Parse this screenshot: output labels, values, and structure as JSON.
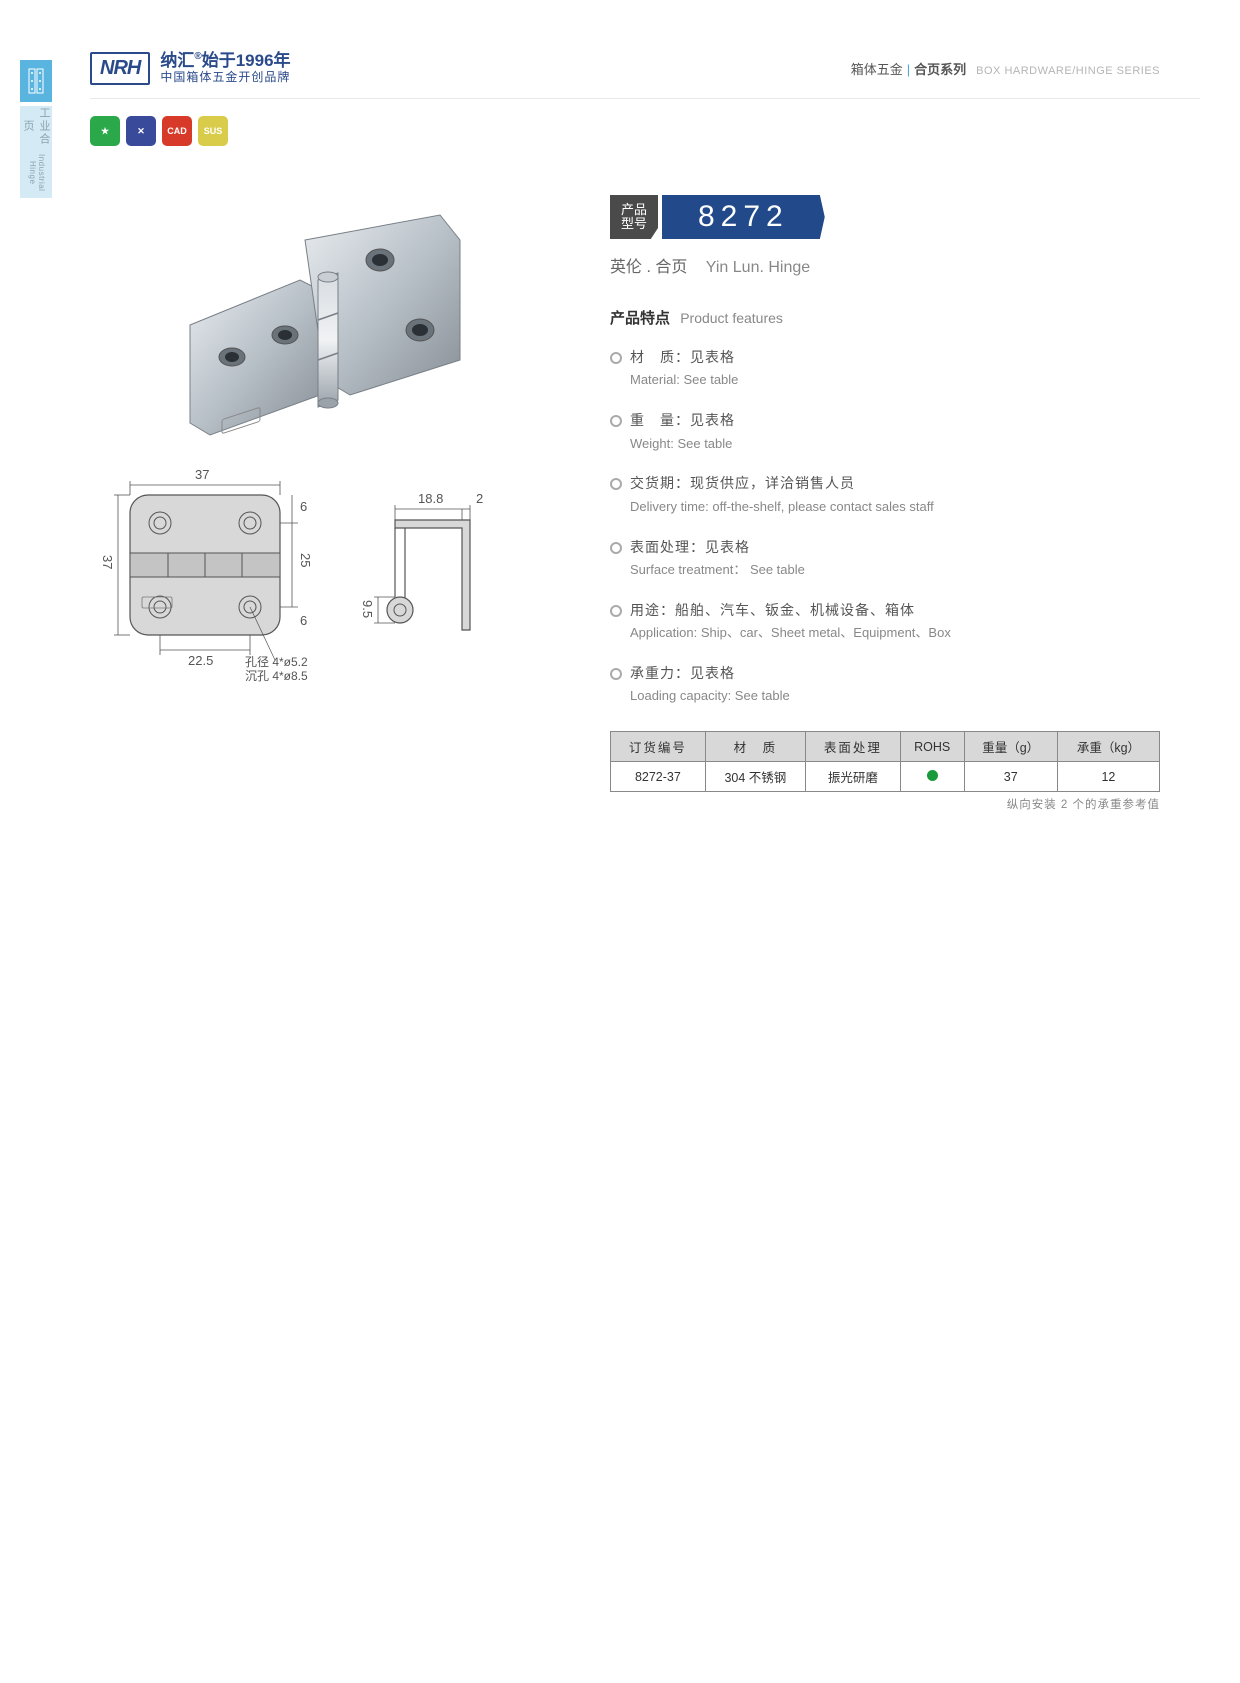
{
  "header": {
    "logo_brand": "NRH",
    "logo_cn": "纳汇",
    "logo_reg": "®",
    "logo_year": "始于1996年",
    "logo_sub": "中国箱体五金开创品牌",
    "right_cn1": "箱体五金",
    "right_cn2": "合页系列",
    "right_en": "BOX HARDWARE/HINGE SERIES"
  },
  "sidetab": {
    "cn": "工业合页",
    "en": "Industrial Hinge"
  },
  "badges": [
    {
      "bg": "#2aa84a",
      "label": "★"
    },
    {
      "bg": "#3a4a9a",
      "label": "✕"
    },
    {
      "bg": "#d83a2a",
      "label": "CAD"
    },
    {
      "bg": "#d8cc4a",
      "label": "SUS"
    }
  ],
  "drawings": {
    "w_top": "37",
    "h_left": "37",
    "inner_h": "25",
    "gap_top": "6",
    "gap_bot": "6",
    "hole_w": "22.5",
    "hole_note1": "孔径 4*ø5.2",
    "hole_note2": "沉孔 4*ø8.5",
    "side_w": "18.8",
    "side_t": "2",
    "side_h": "9.5"
  },
  "product": {
    "model_label_l1": "产品",
    "model_label_l2": "型号",
    "model_number": "8272",
    "subtitle_cn": "英伦 . 合页",
    "subtitle_en": "Yin Lun. Hinge",
    "features_title_cn": "产品特点",
    "features_title_en": "Product features",
    "features": [
      {
        "cn": "材　质：见表格",
        "en": "Material: See table"
      },
      {
        "cn": "重　量：见表格",
        "en": "Weight: See table"
      },
      {
        "cn": "交货期：现货供应，详洽销售人员",
        "en": "Delivery time: off-the-shelf, please contact sales staff"
      },
      {
        "cn": "表面处理：见表格",
        "en": "Surface treatment： See table"
      },
      {
        "cn": "用途：船舶、汽车、钣金、机械设备、箱体",
        "en": "Application: Ship、car、Sheet metal、Equipment、Box"
      },
      {
        "cn": "承重力：见表格",
        "en": "Loading capacity: See table"
      }
    ]
  },
  "table": {
    "headers": [
      "订货编号",
      "材　质",
      "表面处理",
      "ROHS",
      "重量（g）",
      "承重（kg）"
    ],
    "row": {
      "code": "8272-37",
      "material": "304 不锈钢",
      "surface": "振光研磨",
      "weight": "37",
      "load": "12"
    },
    "note": "纵向安装 2 个的承重参考值"
  },
  "colors": {
    "brand_blue": "#224a8a",
    "accent_cyan": "#5ab4e0",
    "metal_light": "#d0d4d8",
    "metal_mid": "#a8b0b8",
    "metal_dark": "#787f86"
  }
}
